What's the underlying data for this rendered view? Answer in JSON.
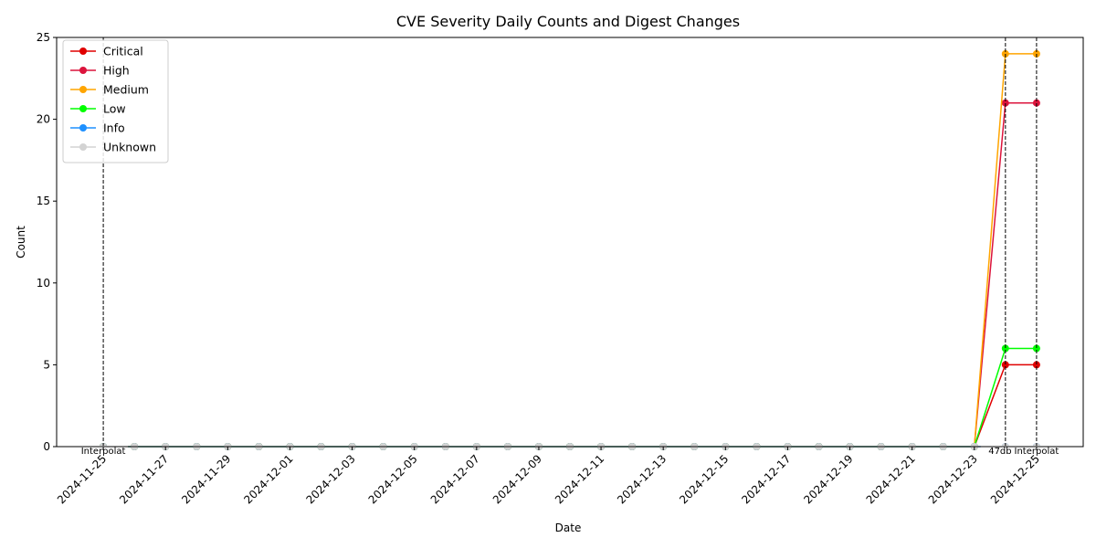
{
  "chart_data": {
    "type": "line",
    "title": "CVE Severity Daily Counts and Digest Changes",
    "xlabel": "Date",
    "ylabel": "Count",
    "x": [
      "2024-11-25",
      "2024-11-26",
      "2024-11-27",
      "2024-11-28",
      "2024-11-29",
      "2024-11-30",
      "2024-12-01",
      "2024-12-02",
      "2024-12-03",
      "2024-12-04",
      "2024-12-05",
      "2024-12-06",
      "2024-12-07",
      "2024-12-08",
      "2024-12-09",
      "2024-12-10",
      "2024-12-11",
      "2024-12-12",
      "2024-12-13",
      "2024-12-14",
      "2024-12-15",
      "2024-12-16",
      "2024-12-17",
      "2024-12-18",
      "2024-12-19",
      "2024-12-20",
      "2024-12-21",
      "2024-12-22",
      "2024-12-23",
      "2024-12-24",
      "2024-12-25"
    ],
    "x_tick_labels": [
      "2024-11-25",
      "2024-11-27",
      "2024-11-29",
      "2024-12-01",
      "2024-12-03",
      "2024-12-05",
      "2024-12-07",
      "2024-12-09",
      "2024-12-11",
      "2024-12-13",
      "2024-12-15",
      "2024-12-17",
      "2024-12-19",
      "2024-12-21",
      "2024-12-23",
      "2024-12-25"
    ],
    "ylim": [
      0,
      25
    ],
    "y_ticks": [
      0,
      5,
      10,
      15,
      20,
      25
    ],
    "grid": false,
    "legend_position": "top-left",
    "series": [
      {
        "name": "Critical",
        "color": "#e00000",
        "values": [
          0,
          0,
          0,
          0,
          0,
          0,
          0,
          0,
          0,
          0,
          0,
          0,
          0,
          0,
          0,
          0,
          0,
          0,
          0,
          0,
          0,
          0,
          0,
          0,
          0,
          0,
          0,
          0,
          0,
          5,
          5
        ]
      },
      {
        "name": "High",
        "color": "#dc143c",
        "values": [
          0,
          0,
          0,
          0,
          0,
          0,
          0,
          0,
          0,
          0,
          0,
          0,
          0,
          0,
          0,
          0,
          0,
          0,
          0,
          0,
          0,
          0,
          0,
          0,
          0,
          0,
          0,
          0,
          0,
          21,
          21
        ]
      },
      {
        "name": "Medium",
        "color": "#ffa500",
        "values": [
          0,
          0,
          0,
          0,
          0,
          0,
          0,
          0,
          0,
          0,
          0,
          0,
          0,
          0,
          0,
          0,
          0,
          0,
          0,
          0,
          0,
          0,
          0,
          0,
          0,
          0,
          0,
          0,
          0,
          24,
          24
        ]
      },
      {
        "name": "Low",
        "color": "#00ff00",
        "values": [
          0,
          0,
          0,
          0,
          0,
          0,
          0,
          0,
          0,
          0,
          0,
          0,
          0,
          0,
          0,
          0,
          0,
          0,
          0,
          0,
          0,
          0,
          0,
          0,
          0,
          0,
          0,
          0,
          0,
          6,
          6
        ]
      },
      {
        "name": "Info",
        "color": "#1e90ff",
        "values": [
          0,
          0,
          0,
          0,
          0,
          0,
          0,
          0,
          0,
          0,
          0,
          0,
          0,
          0,
          0,
          0,
          0,
          0,
          0,
          0,
          0,
          0,
          0,
          0,
          0,
          0,
          0,
          0,
          0,
          0,
          0
        ]
      },
      {
        "name": "Unknown",
        "color": "#d3d3d3",
        "values": [
          0,
          0,
          0,
          0,
          0,
          0,
          0,
          0,
          0,
          0,
          0,
          0,
          0,
          0,
          0,
          0,
          0,
          0,
          0,
          0,
          0,
          0,
          0,
          0,
          0,
          0,
          0,
          0,
          0,
          0,
          0
        ]
      }
    ],
    "digest_markers": [
      {
        "date": "2024-11-25",
        "label": "Interpolat"
      },
      {
        "date": "2024-12-24",
        "label": "47db5c"
      },
      {
        "date": "2024-12-25",
        "label": "Interpolat"
      }
    ]
  }
}
